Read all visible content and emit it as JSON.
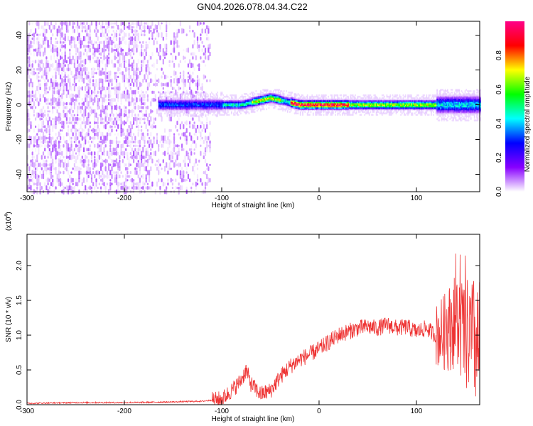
{
  "chart_data": [
    {
      "type": "heatmap",
      "title": "GN04.2026.078.04.34.C22",
      "xlabel": "Height of straight line (km)",
      "ylabel": "Frequency (Hz)",
      "xlim": [
        -300,
        165
      ],
      "ylim": [
        -50,
        48
      ],
      "xticks": [
        -300,
        -200,
        -100,
        0,
        100
      ],
      "yticks": [
        -40,
        -20,
        0,
        20,
        40
      ],
      "colorbar": {
        "label": "Normalized spectral amplitude",
        "range": [
          0,
          1
        ],
        "ticks": [
          "0.0",
          "0.2",
          "0.4",
          "0.6",
          "0.8"
        ],
        "colors": [
          "#ffffff",
          "#8800ff",
          "#0000ff",
          "#00ffff",
          "#00ff00",
          "#ffff00",
          "#ff0000",
          "#ff0088"
        ]
      },
      "regions": [
        {
          "x": [
            -300,
            -115
          ],
          "f": [
            -50,
            48
          ],
          "description": "scattered low amplitude noise"
        },
        {
          "x": [
            -165,
            165
          ],
          "f": [
            -8,
            8
          ],
          "description": "concentrated band near 0 Hz"
        },
        {
          "x": [
            -25,
            25
          ],
          "f": [
            -2,
            2
          ],
          "peak": 1.0
        }
      ]
    },
    {
      "type": "line",
      "xlabel": "Height of straight line (km)",
      "ylabel": "SNR (10 * v/v)",
      "multiplier": "(x10",
      "multiplier_exp": "4",
      "multiplier_close": ")",
      "xlim": [
        -300,
        165
      ],
      "ylim": [
        0,
        2.45
      ],
      "xticks": [
        -300,
        -200,
        -100,
        0,
        100
      ],
      "yticks": [
        "0.0",
        "0.5",
        "1.0",
        "1.5",
        "2.0"
      ],
      "series": [
        {
          "color": "#ee3333",
          "x": [
            -300,
            -250,
            -200,
            -150,
            -120,
            -100,
            -90,
            -80,
            -75,
            -70,
            -60,
            -50,
            -40,
            -30,
            -20,
            -10,
            0,
            10,
            20,
            30,
            40,
            50,
            60,
            70,
            80,
            90,
            100,
            110,
            120,
            130,
            140,
            150,
            160,
            165
          ],
          "y": [
            0.02,
            0.03,
            0.03,
            0.04,
            0.05,
            0.08,
            0.2,
            0.35,
            0.5,
            0.3,
            0.15,
            0.2,
            0.4,
            0.55,
            0.65,
            0.72,
            0.8,
            0.9,
            1.0,
            1.05,
            1.1,
            1.12,
            1.1,
            1.15,
            1.1,
            1.12,
            1.05,
            1.1,
            1.0,
            1.05,
            1.2,
            1.0,
            0.9,
            0.8
          ]
        }
      ]
    }
  ]
}
